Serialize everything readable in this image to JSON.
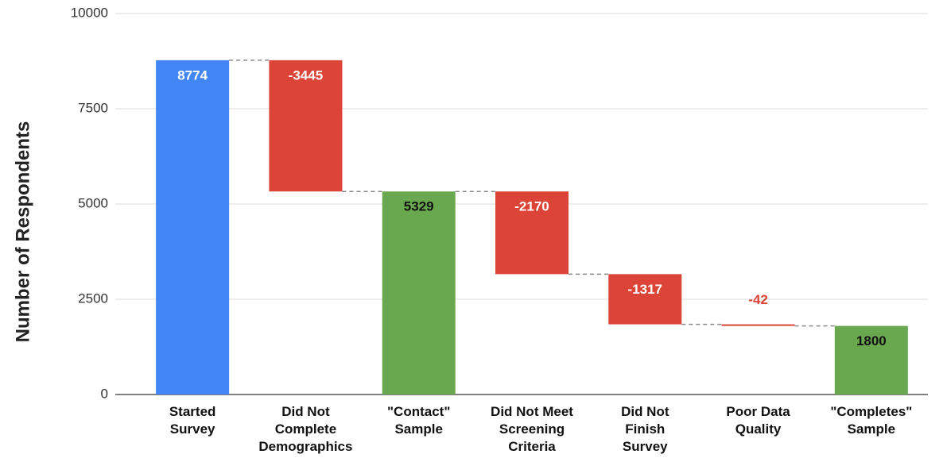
{
  "chart_data": {
    "type": "waterfall",
    "y_label": "Number of Respondents",
    "categories": [
      "Started Survey",
      "Did Not Complete Demographics",
      "\"Contact\" Sample",
      "Did Not Meet Screening Criteria",
      "Did Not Finish Survey",
      "Poor Data Quality",
      "\"Completes\" Sample"
    ],
    "values": [
      8774,
      -3445,
      5329,
      -2170,
      -1317,
      -42,
      1800
    ],
    "measure": [
      "absolute",
      "relative",
      "absolute",
      "relative",
      "relative",
      "relative",
      "absolute"
    ],
    "colors": [
      "#4285f4",
      "#db4437",
      "#6aa84f",
      "#db4437",
      "#db4437",
      "#db4437",
      "#6aa84f"
    ],
    "label_colors": [
      "#ffffff",
      "#ffffff",
      "#111111",
      "#ffffff",
      "#ffffff",
      "#db4437",
      "#111111"
    ],
    "ylim": [
      0,
      10000
    ],
    "yticks": [
      0,
      2500,
      5000,
      7500,
      10000
    ],
    "grid": true
  }
}
